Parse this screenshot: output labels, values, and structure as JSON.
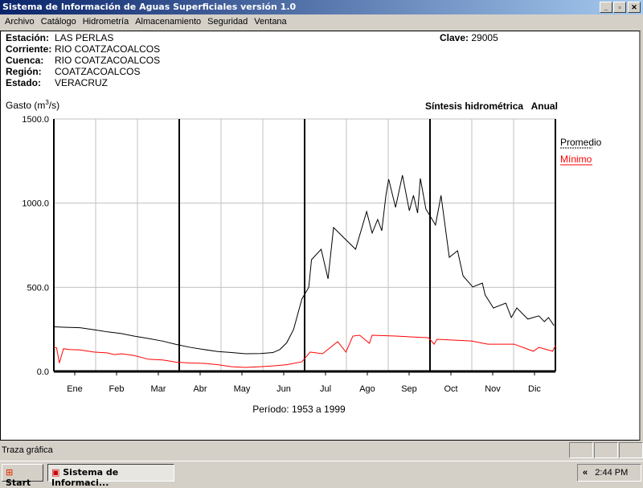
{
  "window": {
    "title": "Sistema de Información de Aguas Superficiales  versión 1.0"
  },
  "menu": [
    "Archivo",
    "Catálogo",
    "Hidrometría",
    "Almacenamiento",
    "Seguridad",
    "Ventana"
  ],
  "station": {
    "estacion_label": "Estación:",
    "estacion": "LAS PERLAS",
    "corriente_label": "Corriente:",
    "corriente": "RIO COATZACOALCOS",
    "cuenca_label": "Cuenca:",
    "cuenca": "RIO COATZACOALCOS",
    "region_label": "Región:",
    "region": "COATZACOALCOS",
    "estado_label": "Estado:",
    "estado": "VERACRUZ",
    "clave_label": "Clave:",
    "clave": "29005"
  },
  "chart_data": {
    "type": "line",
    "title": "Síntesis hidrométrica   Anual",
    "ylabel": "Gasto (m³/s)",
    "ylabel_main": "Gasto (m",
    "ylabel_sup": "3",
    "ylabel_end": "/s)",
    "xlabel": "Período:  1953 a 1999",
    "ylim": [
      0,
      1500
    ],
    "yticks": [
      "0.0",
      "500.0",
      "1000.0",
      "1500.0"
    ],
    "ytick_values": [
      0,
      500,
      1000,
      1500
    ],
    "months": [
      "Ene",
      "Feb",
      "Mar",
      "Abr",
      "May",
      "Jun",
      "Jul",
      "Ago",
      "Sep",
      "Oct",
      "Nov",
      "Dic"
    ],
    "grid": true,
    "legend_position": "right",
    "series": [
      {
        "name": "Promedio",
        "color": "#000000",
        "x": [
          1,
          10,
          20,
          30,
          40,
          50,
          59,
          70,
          80,
          90,
          100,
          110,
          120,
          130,
          140,
          151,
          160,
          165,
          170,
          175,
          181,
          186,
          188,
          195,
          200,
          204,
          212,
          220,
          228,
          232,
          236,
          239,
          242,
          244,
          249,
          254,
          259,
          262,
          265,
          267,
          271,
          278,
          282,
          288,
          294,
          298,
          305,
          312,
          314,
          320,
          329,
          333,
          337,
          345,
          353,
          357,
          360,
          364
        ],
        "y": [
          265,
          262,
          260,
          248,
          235,
          225,
          210,
          195,
          180,
          160,
          143,
          130,
          118,
          112,
          105,
          106,
          112,
          130,
          170,
          250,
          430,
          500,
          664,
          726,
          550,
          855,
          790,
          726,
          950,
          822,
          903,
          836,
          1046,
          1142,
          975,
          1166,
          955,
          1046,
          941,
          1147,
          965,
          870,
          1046,
          678,
          717,
          568,
          502,
          525,
          455,
          377,
          406,
          320,
          377,
          311,
          330,
          296,
          320,
          272
        ]
      },
      {
        "name": "Mínimo",
        "color": "#ff0000",
        "x": [
          1,
          3,
          5,
          8,
          12,
          20,
          30,
          40,
          45,
          50,
          59,
          70,
          80,
          90,
          100,
          110,
          120,
          130,
          140,
          151,
          160,
          170,
          181,
          187,
          196,
          207,
          213,
          218,
          223,
          230,
          232,
          249,
          273,
          277,
          279,
          304,
          316,
          335,
          349,
          353,
          363,
          365
        ],
        "y": [
          143,
          140,
          50,
          135,
          130,
          128,
          115,
          110,
          100,
          105,
          95,
          72,
          68,
          55,
          50,
          48,
          40,
          28,
          24,
          28,
          33,
          40,
          57,
          115,
          105,
          177,
          115,
          210,
          215,
          167,
          215,
          210,
          200,
          162,
          191,
          181,
          162,
          162,
          120,
          143,
          120,
          153
        ]
      }
    ]
  },
  "status": {
    "text": "Traza gráfica"
  },
  "taskbar": {
    "start": "Start",
    "task": "Sistema de Informaci...",
    "clock": "2:44 PM",
    "chevron": "«"
  }
}
